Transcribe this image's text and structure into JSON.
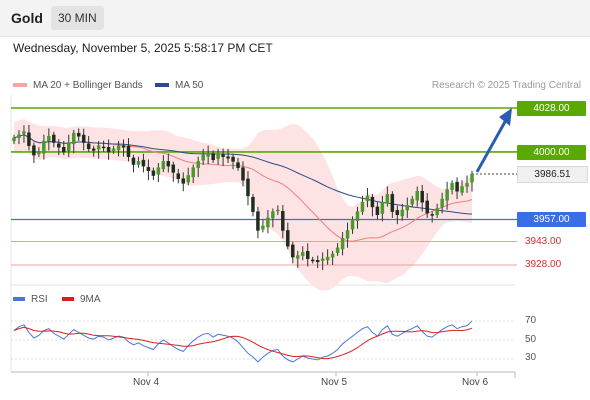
{
  "header": {
    "symbol": "Gold",
    "timeframe": "30 MIN"
  },
  "datetime": "Wednesday, November 5, 2025 5:58:17 PM CET",
  "legend": {
    "ma20_label": "MA 20 + Bollinger Bands",
    "ma50_label": "MA 50",
    "research": "Research © 2025 Trading Central"
  },
  "colors": {
    "ma20": "#f08080",
    "ma50": "#2e4a8b",
    "rsi": "#4a78d6",
    "rsi_ma": "#d82020",
    "target": "#5aa800",
    "pivot": "#3a6ee8",
    "support": "#d0302b",
    "arrow": "#2a5db0"
  },
  "price_levels": {
    "target2": "4028.00",
    "target1": "4000.00",
    "last": "3986.51",
    "pivot": "3957.00",
    "support1": "3943.00",
    "support2": "3928.00"
  },
  "rsi_panel": {
    "rsi_label": "RSI",
    "ma_label": "9MA",
    "levels": [
      "70",
      "50",
      "30"
    ]
  },
  "x_axis": [
    "Nov 4",
    "Nov 5",
    "Nov 6"
  ],
  "chart_data": {
    "type": "candlestick",
    "symbol": "Gold",
    "timeframe": "30 MIN",
    "ylim": [
      3920,
      4035
    ],
    "closes": [
      4009,
      4011,
      4013,
      4004,
      3998,
      4000,
      4007,
      4010,
      4006,
      4003,
      4000,
      4006,
      4012,
      4010,
      4006,
      4002,
      4001,
      4004,
      4003,
      4000,
      4002,
      4004,
      4003,
      3997,
      3992,
      3994,
      3991,
      3988,
      3985,
      3990,
      3994,
      3991,
      3987,
      3983,
      3980,
      3985,
      3990,
      3994,
      3998,
      3999,
      3995,
      3999,
      3997,
      3996,
      3994,
      3990,
      3982,
      3972,
      3962,
      3950,
      3953,
      3958,
      3962,
      3963,
      3950,
      3940,
      3933,
      3934,
      3936,
      3932,
      3931,
      3930,
      3932,
      3933,
      3935,
      3939,
      3945,
      3950,
      3957,
      3962,
      3968,
      3972,
      3965,
      3960,
      3968,
      3973,
      3962,
      3960,
      3963,
      3966,
      3970,
      3975,
      3968,
      3961,
      3960,
      3964,
      3970,
      3976,
      3980,
      3975,
      3978,
      3980,
      3986
    ],
    "rsi": [
      60,
      64,
      66,
      58,
      52,
      55,
      60,
      62,
      57,
      54,
      51,
      56,
      61,
      58,
      55,
      52,
      51,
      54,
      53,
      50,
      52,
      54,
      53,
      48,
      45,
      47,
      44,
      42,
      40,
      46,
      50,
      47,
      43,
      40,
      38,
      44,
      49,
      53,
      56,
      57,
      53,
      56,
      55,
      54,
      52,
      48,
      42,
      36,
      32,
      27,
      32,
      36,
      39,
      40,
      33,
      29,
      27,
      30,
      33,
      31,
      30,
      29,
      32,
      33,
      36,
      40,
      46,
      50,
      54,
      58,
      62,
      64,
      58,
      54,
      61,
      65,
      56,
      54,
      57,
      60,
      62,
      65,
      59,
      54,
      53,
      57,
      61,
      64,
      66,
      62,
      64,
      65,
      70
    ],
    "levels": {
      "target2": 4028.0,
      "target1": 4000.0,
      "pivot": 3957.0,
      "support1": 3943.0,
      "support2": 3928.0
    }
  }
}
